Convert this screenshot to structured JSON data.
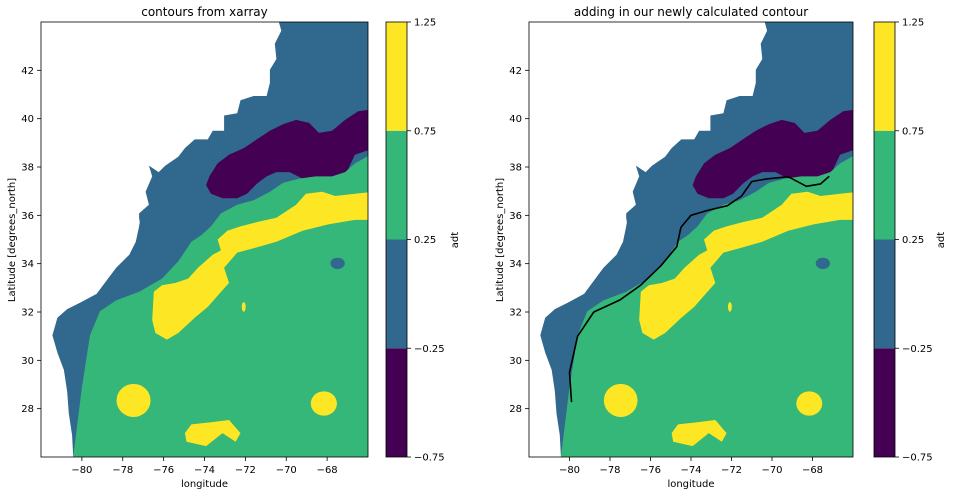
{
  "chart_data": [
    {
      "type": "heatmap",
      "subtype": "filled-contour",
      "title": "contours from xarray",
      "xlabel": "longitude",
      "ylabel": "Latitude [degrees_north]",
      "xlim": [
        -82,
        -66
      ],
      "ylim": [
        26,
        44
      ],
      "xticks": [
        -80,
        -78,
        -76,
        -74,
        -72,
        -70,
        -68
      ],
      "xtick_labels": [
        "−80",
        "−78",
        "−76",
        "−74",
        "−72",
        "−70",
        "−68"
      ],
      "yticks": [
        28,
        30,
        32,
        34,
        36,
        38,
        40,
        42
      ],
      "ytick_labels": [
        "28",
        "30",
        "32",
        "34",
        "36",
        "38",
        "40",
        "42"
      ],
      "levels": [
        -0.75,
        -0.25,
        0.25,
        0.75,
        1.25
      ],
      "level_labels": [
        "−0.75",
        "−0.25",
        "0.25",
        "0.75",
        "1.25"
      ],
      "level_colors": [
        "#440154",
        "#31688e",
        "#35b779",
        "#fde725"
      ],
      "colorbar_label": "adt",
      "grid": false,
      "extra_contour": null
    },
    {
      "type": "heatmap",
      "subtype": "filled-contour",
      "title": "adding in our newly calculated contour",
      "xlabel": "longitude",
      "ylabel": "Latitude [degrees_north]",
      "xlim": [
        -82,
        -66
      ],
      "ylim": [
        26,
        44
      ],
      "xticks": [
        -80,
        -78,
        -76,
        -74,
        -72,
        -70,
        -68
      ],
      "xtick_labels": [
        "−80",
        "−78",
        "−76",
        "−74",
        "−72",
        "−70",
        "−68"
      ],
      "yticks": [
        28,
        30,
        32,
        34,
        36,
        38,
        40,
        42
      ],
      "ytick_labels": [
        "28",
        "30",
        "32",
        "34",
        "36",
        "38",
        "40",
        "42"
      ],
      "levels": [
        -0.75,
        -0.25,
        0.25,
        0.75,
        1.25
      ],
      "level_labels": [
        "−0.75",
        "−0.25",
        "0.25",
        "0.75",
        "1.25"
      ],
      "level_colors": [
        "#440154",
        "#31688e",
        "#35b779",
        "#fde725"
      ],
      "colorbar_label": "adt",
      "grid": false,
      "extra_contour": {
        "color": "#000000",
        "points": [
          [
            -79.9,
            28.3
          ],
          [
            -80.0,
            29.5
          ],
          [
            -79.6,
            31.0
          ],
          [
            -78.8,
            32.0
          ],
          [
            -77.5,
            32.5
          ],
          [
            -76.5,
            33.1
          ],
          [
            -75.5,
            33.9
          ],
          [
            -74.7,
            34.7
          ],
          [
            -74.5,
            35.5
          ],
          [
            -74.0,
            36.0
          ],
          [
            -73.2,
            36.2
          ],
          [
            -72.2,
            36.4
          ],
          [
            -71.5,
            36.8
          ],
          [
            -71.0,
            37.4
          ],
          [
            -70.3,
            37.5
          ],
          [
            -69.2,
            37.6
          ],
          [
            -68.3,
            37.2
          ],
          [
            -67.6,
            37.3
          ],
          [
            -67.2,
            37.6
          ]
        ]
      }
    }
  ]
}
